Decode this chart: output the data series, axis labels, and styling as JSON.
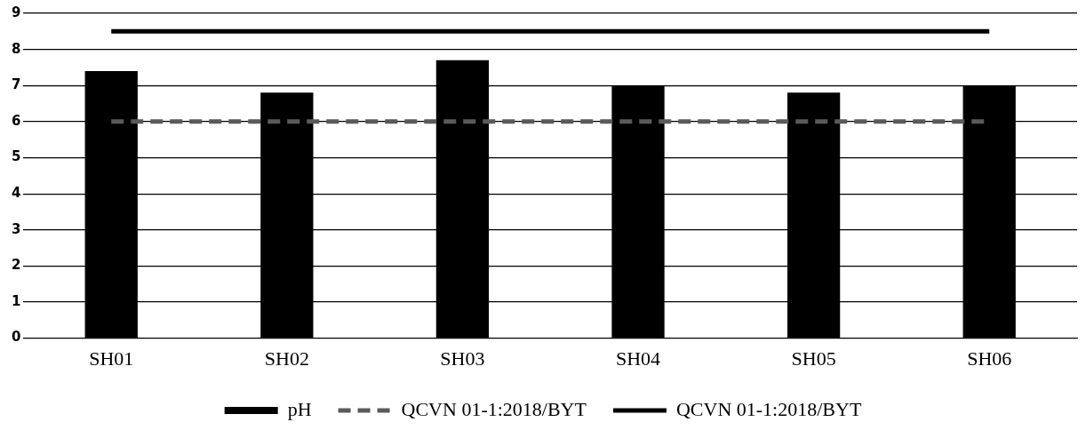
{
  "chart_data": {
    "type": "bar",
    "categories": [
      "SH01",
      "SH02",
      "SH03",
      "SH04",
      "SH05",
      "SH06"
    ],
    "series": [
      {
        "name": "pH",
        "color": "#000000",
        "values": [
          7.4,
          6.8,
          7.7,
          7.0,
          6.8,
          7.0
        ]
      },
      {
        "name": "QCVN 01-1:2018/BYT",
        "type": "line",
        "line_style": "dashed",
        "color": "#5a5a5a",
        "values": [
          6,
          6,
          6,
          6,
          6,
          6
        ]
      },
      {
        "name": "QCVN 01-1:2018/BYT",
        "type": "line",
        "line_style": "solid",
        "color": "#000000",
        "values": [
          8.5,
          8.5,
          8.5,
          8.5,
          8.5,
          8.5
        ]
      }
    ],
    "ylim": [
      0,
      9
    ],
    "yticks": [
      0,
      1,
      2,
      3,
      4,
      5,
      6,
      7,
      8,
      9
    ],
    "grid": "y",
    "legend": "bottom",
    "marker": "none"
  }
}
